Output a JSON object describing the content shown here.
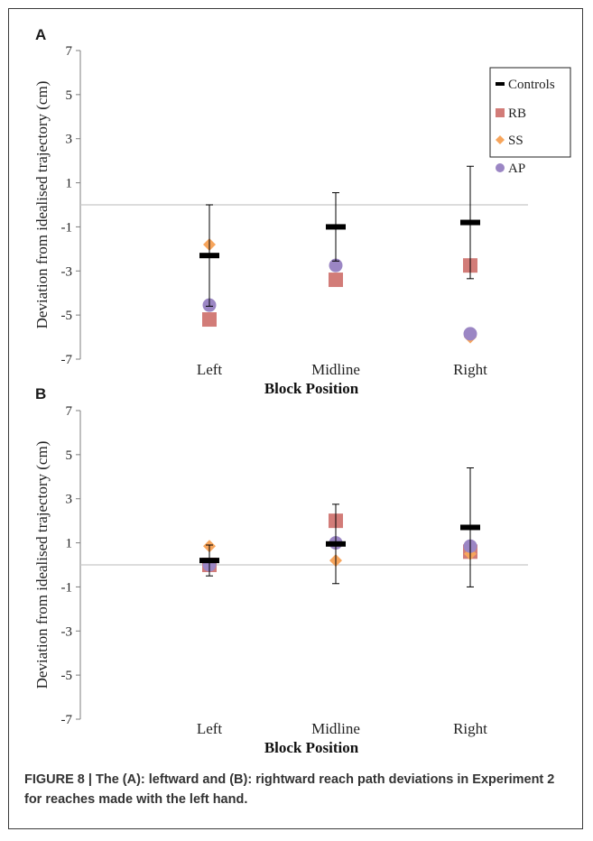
{
  "chart_data": [
    {
      "panel": "A",
      "type": "scatter",
      "categories": [
        "Left",
        "Midline",
        "Right"
      ],
      "xlabel": "Block Position",
      "ylabel": "Deviation from idealised trajectory (cm)",
      "ylim": [
        -7,
        7
      ],
      "yticks": [
        7,
        5,
        3,
        1,
        -1,
        -3,
        -5,
        -7
      ],
      "reference_line": 0,
      "legend_position": "top-right",
      "series": [
        {
          "name": "Controls",
          "marker": "dash",
          "color": "#000000",
          "values": [
            -2.3,
            -1.0,
            -0.8
          ],
          "error": [
            2.3,
            1.55,
            2.55
          ]
        },
        {
          "name": "RB",
          "marker": "square",
          "color": "#d27c78",
          "values": [
            -5.2,
            -3.4,
            -2.75
          ]
        },
        {
          "name": "SS",
          "marker": "diamond",
          "color": "#f7a55c",
          "values": [
            -1.8,
            -2.75,
            -6.0
          ]
        },
        {
          "name": "AP",
          "marker": "circle",
          "color": "#9b86c4",
          "values": [
            -4.55,
            -2.75,
            -5.85
          ]
        }
      ]
    },
    {
      "panel": "B",
      "type": "scatter",
      "categories": [
        "Left",
        "Midline",
        "Right"
      ],
      "xlabel": "Block Position",
      "ylabel": "Deviation from idealised trajectory (cm)",
      "ylim": [
        -7,
        7
      ],
      "yticks": [
        7,
        5,
        3,
        1,
        -1,
        -3,
        -5,
        -7
      ],
      "reference_line": 0,
      "series": [
        {
          "name": "Controls",
          "marker": "dash",
          "color": "#000000",
          "values": [
            0.2,
            0.95,
            1.7
          ],
          "error": [
            0.7,
            1.8,
            2.7
          ]
        },
        {
          "name": "RB",
          "marker": "square",
          "color": "#d27c78",
          "values": [
            0.0,
            2.0,
            0.6
          ]
        },
        {
          "name": "SS",
          "marker": "diamond",
          "color": "#f7a55c",
          "values": [
            0.85,
            0.2,
            0.5
          ]
        },
        {
          "name": "AP",
          "marker": "circle",
          "color": "#9b86c4",
          "values": [
            0.0,
            1.0,
            0.85
          ]
        }
      ]
    }
  ],
  "caption": "FIGURE 8 | The (A): leftward and (B): rightward reach path deviations in Experiment 2 for reaches made with the left hand."
}
